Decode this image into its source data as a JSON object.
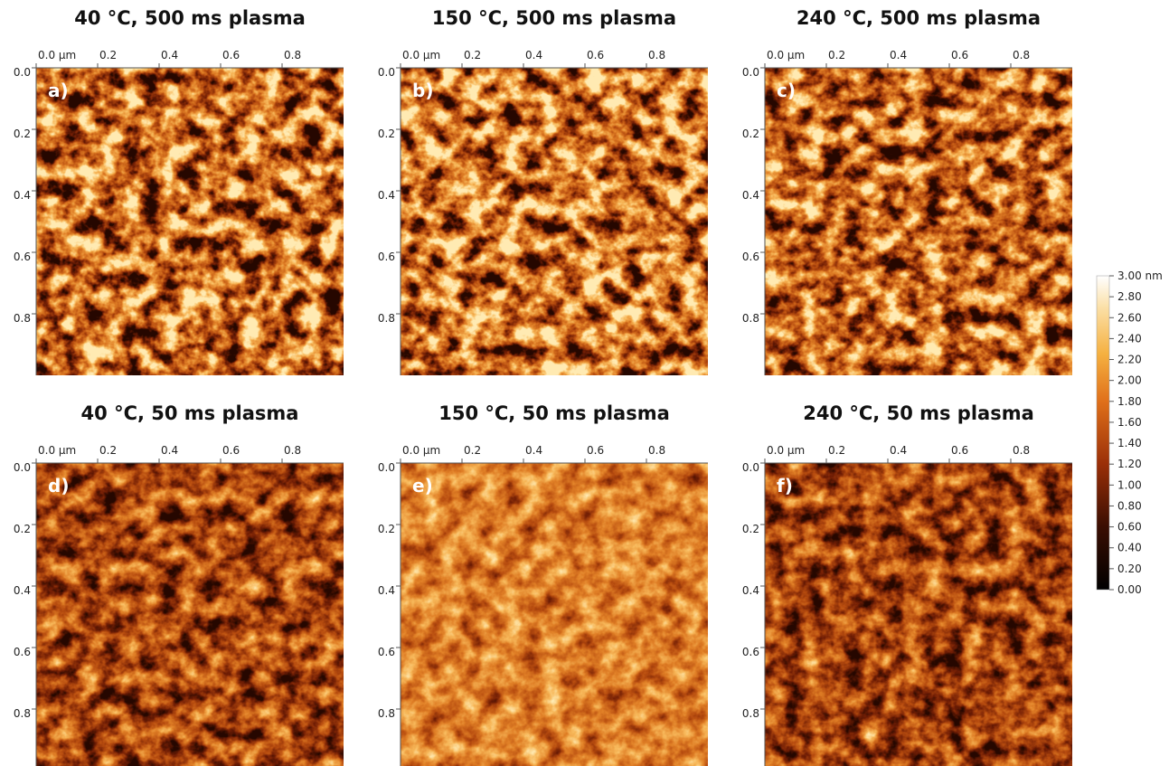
{
  "panels": [
    {
      "title": "40 °C, 500 ms plasma",
      "label": "a)"
    },
    {
      "title": "150 °C, 500 ms plasma",
      "label": "b)"
    },
    {
      "title": "240 °C, 500 ms plasma",
      "label": "c)"
    },
    {
      "title": "40 °C, 50 ms plasma",
      "label": "d)"
    },
    {
      "title": "150 °C, 50 ms plasma",
      "label": "e)"
    },
    {
      "title": "240 °C, 50 ms plasma",
      "label": "f)"
    }
  ],
  "x_axis": {
    "ticks": [
      "0.0 µm",
      "0.2",
      "0.4",
      "0.6",
      "0.8"
    ]
  },
  "y_axis": {
    "ticks": [
      "0.0",
      "0.2",
      "0.4",
      "0.6",
      "0.8"
    ]
  },
  "colorbar": {
    "ticks": [
      "3.00 nm",
      "2.80",
      "2.60",
      "2.40",
      "2.20",
      "2.00",
      "1.80",
      "1.60",
      "1.40",
      "1.20",
      "1.00",
      "0.80",
      "0.60",
      "0.40",
      "0.20",
      "0.00"
    ]
  }
}
